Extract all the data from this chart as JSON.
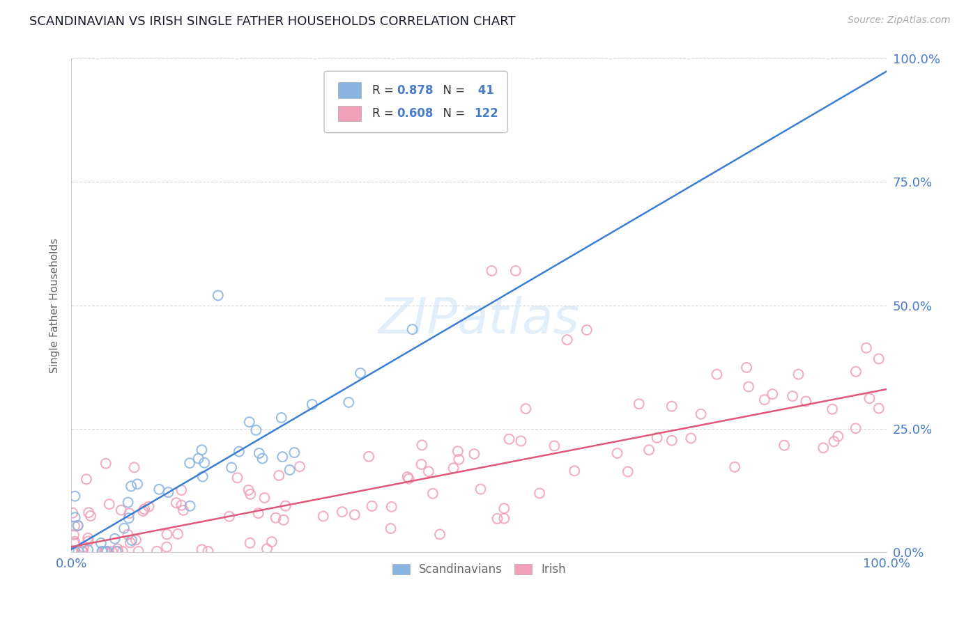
{
  "title": "SCANDINAVIAN VS IRISH SINGLE FATHER HOUSEHOLDS CORRELATION CHART",
  "source": "Source: ZipAtlas.com",
  "ylabel": "Single Father Households",
  "watermark": "ZIPatlas",
  "legend_label1": "Scandinavians",
  "legend_label2": "Irish",
  "scand_color": "#8ab4e0",
  "irish_color": "#f0a0b8",
  "scand_line_color": "#3a7fd5",
  "irish_line_color": "#e05878",
  "title_color": "#1a1a2e",
  "axis_color": "#4a7cc7",
  "grid_color": "#cccccc",
  "background_color": "#ffffff",
  "R_scand": 0.878,
  "N_scand": 41,
  "R_irish": 0.608,
  "N_irish": 122,
  "legend_text_dark": "#333333",
  "legend_text_blue": "#4a7cc7"
}
